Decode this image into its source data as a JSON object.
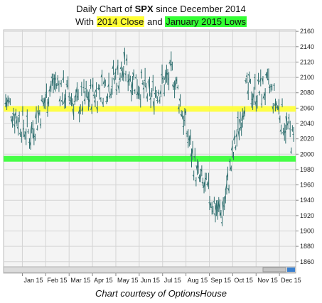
{
  "title": {
    "line1_prefix": "Daily Chart of ",
    "line1_symbol": "SPX",
    "line1_suffix": " since December 2014",
    "line2_prefix": "With ",
    "line2_highlight1": "2014 Close",
    "line2_mid": " and ",
    "line2_highlight2": "January 2015 Lows"
  },
  "caption": "Chart courtesy of OptionsHouse",
  "colors": {
    "price_bars": "#2f6f6f",
    "close_band": "#ffff33",
    "lows_band": "#33ff33",
    "plot_bg": "#f4f4f4",
    "grid": "#d4d4d4"
  },
  "chart_data": {
    "type": "bar",
    "title": "Daily Chart of SPX since December 2014",
    "x_tick_labels": [
      "Jan 15",
      "Feb 15",
      "Mar 15",
      "Apr 15",
      "May 15",
      "Jun 15",
      "Jul 15",
      "Aug 15",
      "Sep 15",
      "Oct 15",
      "Nov 15",
      "Dec 15"
    ],
    "y_ticks": [
      1860,
      1880,
      1900,
      1920,
      1940,
      1960,
      1980,
      2000,
      2020,
      2040,
      2060,
      2080,
      2100,
      2120,
      2140,
      2160
    ],
    "ylim": [
      1845,
      2162
    ],
    "y_axis_side": "right",
    "grid": true,
    "horizontal_bands": [
      {
        "name": "2014 Close",
        "value": 2059,
        "color": "#ffff33"
      },
      {
        "name": "January 2015 Lows",
        "value": 1994,
        "color": "#33ff33"
      }
    ],
    "price_path": [
      {
        "month": "Dec 2014",
        "close": 2070
      },
      {
        "month": "Jan 2015",
        "close": 2025
      },
      {
        "month": "Feb 2015",
        "close": 2095
      },
      {
        "month": "Mar 2015",
        "close": 2065
      },
      {
        "month": "Apr 2015",
        "close": 2085
      },
      {
        "month": "May 2015",
        "close": 2110
      },
      {
        "month": "Jun 2015",
        "close": 2075
      },
      {
        "month": "Jul 2015",
        "close": 2105
      },
      {
        "month": "Aug 2015",
        "close": 1970
      },
      {
        "month": "Sep 2015",
        "close": 1920
      },
      {
        "month": "Oct 2015",
        "close": 2080
      },
      {
        "month": "Nov 2015",
        "close": 2085
      },
      {
        "month": "Dec 2015",
        "close": 2015
      }
    ]
  }
}
